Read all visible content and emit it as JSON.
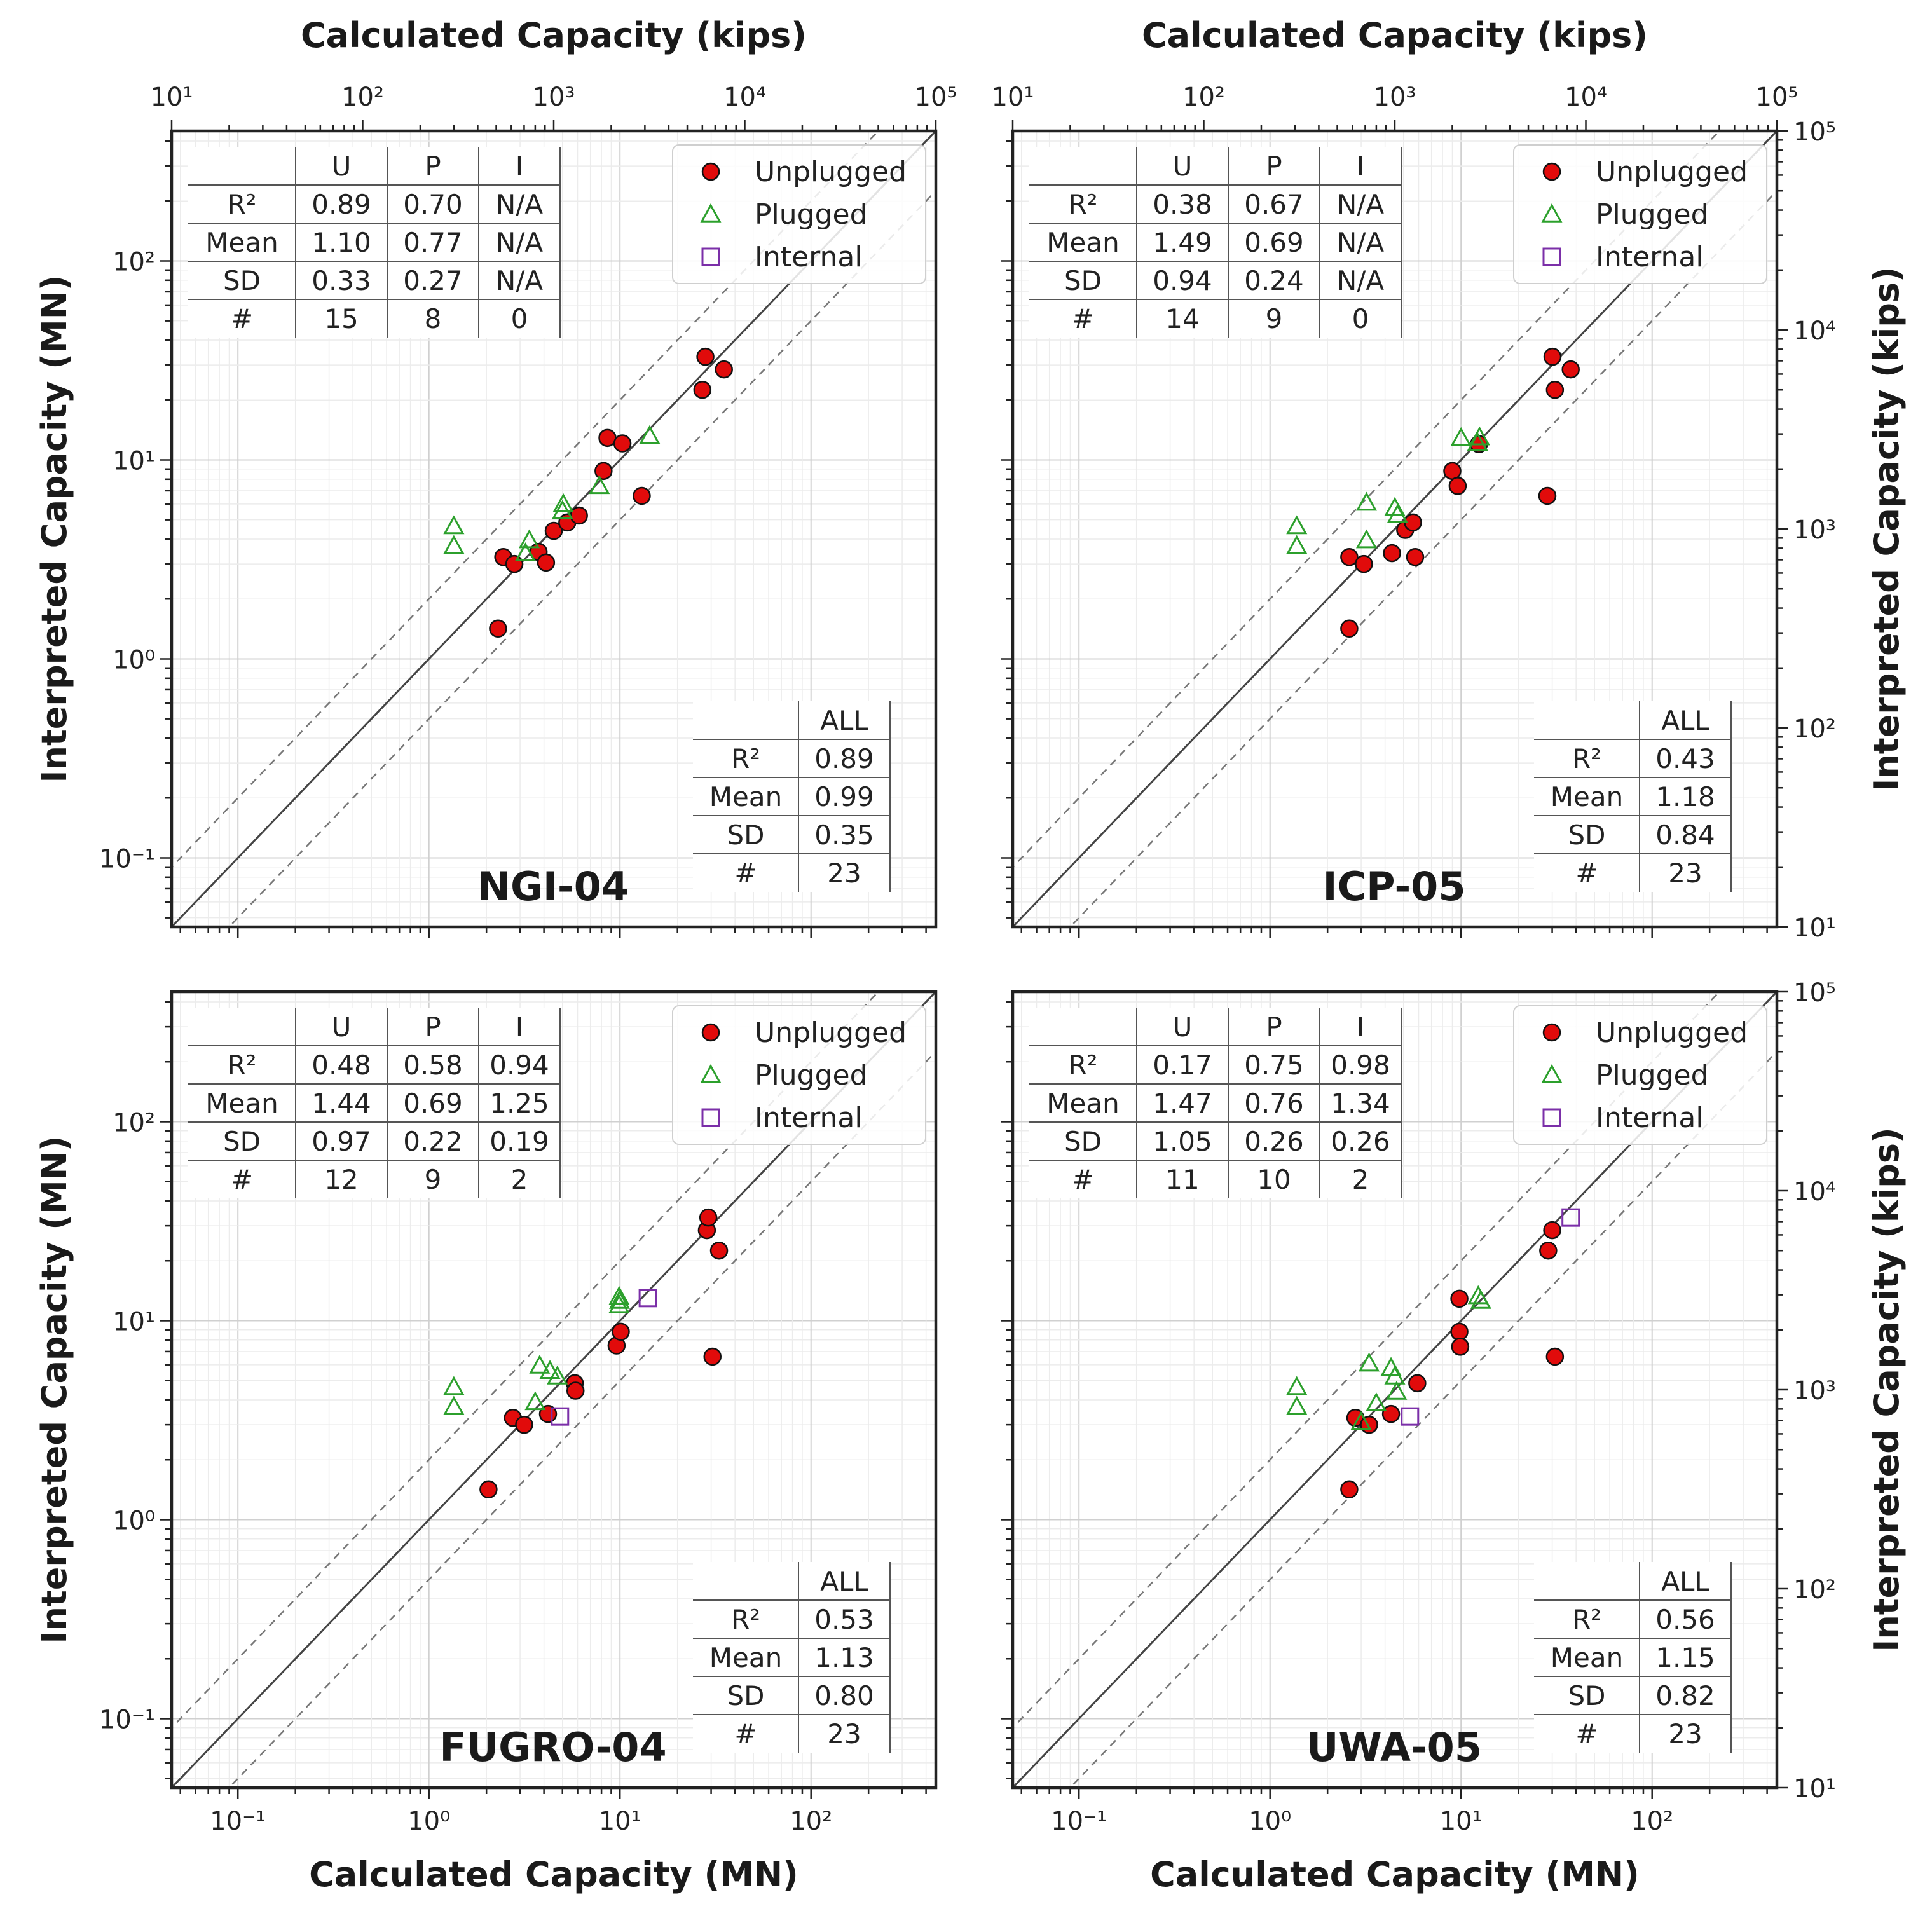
{
  "chart_data": {
    "type": "scatter",
    "x_scale": "log",
    "y_scale": "log",
    "xlim_MN": [
      0.045,
      450
    ],
    "ylim_MN": [
      0.045,
      450
    ],
    "kips_range": [
      10,
      100000
    ],
    "mn_tick_labels": [
      "10⁻¹",
      "10⁰",
      "10¹",
      "10²"
    ],
    "kips_tick_labels": [
      "10¹",
      "10²",
      "10³",
      "10⁴",
      "10⁵"
    ],
    "x_label_top": "Calculated Capacity (kips)",
    "x_label_bottom": "Calculated Capacity (MN)",
    "y_label_left": "Interpreted Capacity (MN)",
    "y_label_right": "Interpreted Capacity (kips)",
    "reference_lines": {
      "one_to_one": 1,
      "bounds": [
        2,
        0.5
      ]
    },
    "legend": [
      {
        "key": "U",
        "label": "Unplugged",
        "marker": "circle",
        "color": "#e00000"
      },
      {
        "key": "P",
        "label": "Plugged",
        "marker": "triangle",
        "color": "#2ca02c"
      },
      {
        "key": "I",
        "label": "Internal",
        "marker": "square",
        "color": "#7b2fa8"
      }
    ],
    "stats_columns": [
      "U",
      "P",
      "I"
    ],
    "stats_all_header": "ALL",
    "stats_row_labels": [
      "R²",
      "Mean",
      "SD",
      "#"
    ],
    "panels": [
      {
        "name": "NGI-04",
        "stats": [
          [
            "0.89",
            "0.70",
            "N/A"
          ],
          [
            "1.10",
            "0.77",
            "N/A"
          ],
          [
            "0.33",
            "0.27",
            "N/A"
          ],
          [
            "15",
            "8",
            "0"
          ]
        ],
        "all": [
          "0.89",
          "0.99",
          "0.35",
          "23"
        ],
        "series": [
          {
            "key": "U",
            "points": [
              [
                2.3,
                1.42
              ],
              [
                2.45,
                3.25
              ],
              [
                2.8,
                3.0
              ],
              [
                3.75,
                3.45
              ],
              [
                4.1,
                3.05
              ],
              [
                4.5,
                4.4
              ],
              [
                5.3,
                4.85
              ],
              [
                6.1,
                5.25
              ],
              [
                8.2,
                8.8
              ],
              [
                8.6,
                12.9
              ],
              [
                10.3,
                12.1
              ],
              [
                13.0,
                6.6
              ],
              [
                27,
                22.5
              ],
              [
                28,
                33.0
              ],
              [
                35,
                28.5
              ]
            ]
          },
          {
            "key": "P",
            "points": [
              [
                1.35,
                4.65
              ],
              [
                1.35,
                3.7
              ],
              [
                3.2,
                3.4
              ],
              [
                3.35,
                3.95
              ],
              [
                5.0,
                5.55
              ],
              [
                5.05,
                6.0
              ],
              [
                7.8,
                7.4
              ],
              [
                14.3,
                13.2
              ]
            ]
          },
          {
            "key": "I",
            "points": []
          }
        ]
      },
      {
        "name": "ICP-05",
        "stats": [
          [
            "0.38",
            "0.67",
            "N/A"
          ],
          [
            "1.49",
            "0.69",
            "N/A"
          ],
          [
            "0.94",
            "0.24",
            "N/A"
          ],
          [
            "14",
            "9",
            "0"
          ]
        ],
        "all": [
          "0.43",
          "1.18",
          "0.84",
          "23"
        ],
        "series": [
          {
            "key": "U",
            "points": [
              [
                2.6,
                3.25
              ],
              [
                2.6,
                1.42
              ],
              [
                3.1,
                3.0
              ],
              [
                4.35,
                3.4
              ],
              [
                5.1,
                4.45
              ],
              [
                5.6,
                4.85
              ],
              [
                5.75,
                3.25
              ],
              [
                9.0,
                8.8
              ],
              [
                9.6,
                7.4
              ],
              [
                12.4,
                12.0
              ],
              [
                28.3,
                6.6
              ],
              [
                30.1,
                33.0
              ],
              [
                31.0,
                22.5
              ],
              [
                37.5,
                28.5
              ]
            ]
          },
          {
            "key": "P",
            "points": [
              [
                1.38,
                4.65
              ],
              [
                1.38,
                3.7
              ],
              [
                3.2,
                6.1
              ],
              [
                3.2,
                3.95
              ],
              [
                4.5,
                5.75
              ],
              [
                4.65,
                5.3
              ],
              [
                10.0,
                12.9
              ],
              [
                12.2,
                12.2
              ],
              [
                12.5,
                13.0
              ]
            ]
          },
          {
            "key": "I",
            "points": []
          }
        ]
      },
      {
        "name": "FUGRO-04",
        "stats": [
          [
            "0.48",
            "0.58",
            "0.94"
          ],
          [
            "1.44",
            "0.69",
            "1.25"
          ],
          [
            "0.97",
            "0.22",
            "0.19"
          ],
          [
            "12",
            "9",
            "2"
          ]
        ],
        "all": [
          "0.53",
          "1.13",
          "0.80",
          "23"
        ],
        "series": [
          {
            "key": "U",
            "points": [
              [
                2.05,
                1.42
              ],
              [
                2.75,
                3.25
              ],
              [
                3.15,
                3.0
              ],
              [
                4.2,
                3.4
              ],
              [
                5.8,
                4.85
              ],
              [
                5.85,
                4.45
              ],
              [
                9.6,
                7.5
              ],
              [
                10.1,
                8.8
              ],
              [
                28.5,
                28.5
              ],
              [
                29.0,
                33.0
              ],
              [
                30.5,
                6.6
              ],
              [
                33.0,
                22.5
              ]
            ]
          },
          {
            "key": "P",
            "points": [
              [
                1.35,
                4.65
              ],
              [
                1.35,
                3.7
              ],
              [
                3.6,
                3.9
              ],
              [
                3.8,
                5.95
              ],
              [
                4.3,
                5.6
              ],
              [
                4.7,
                5.25
              ],
              [
                9.9,
                12.0
              ],
              [
                9.9,
                13.2
              ],
              [
                9.95,
                12.6
              ]
            ]
          },
          {
            "key": "I",
            "points": [
              [
                4.85,
                3.3
              ],
              [
                14.0,
                13.0
              ]
            ]
          }
        ]
      },
      {
        "name": "UWA-05",
        "stats": [
          [
            "0.17",
            "0.75",
            "0.98"
          ],
          [
            "1.47",
            "0.76",
            "1.34"
          ],
          [
            "1.05",
            "0.26",
            "0.26"
          ],
          [
            "11",
            "10",
            "2"
          ]
        ],
        "all": [
          "0.56",
          "1.15",
          "0.82",
          "23"
        ],
        "series": [
          {
            "key": "U",
            "points": [
              [
                2.6,
                1.42
              ],
              [
                2.8,
                3.25
              ],
              [
                3.3,
                3.0
              ],
              [
                4.3,
                3.4
              ],
              [
                5.9,
                4.85
              ],
              [
                9.8,
                12.9
              ],
              [
                9.8,
                8.8
              ],
              [
                9.9,
                7.4
              ],
              [
                28.6,
                22.5
              ],
              [
                30.0,
                28.5
              ],
              [
                31.0,
                6.6
              ]
            ]
          },
          {
            "key": "P",
            "points": [
              [
                1.38,
                4.65
              ],
              [
                1.38,
                3.7
              ],
              [
                3.3,
                6.1
              ],
              [
                3.6,
                3.85
              ],
              [
                4.3,
                5.8
              ],
              [
                4.5,
                5.25
              ],
              [
                4.6,
                4.4
              ],
              [
                12.3,
                13.3
              ],
              [
                12.7,
                12.6
              ],
              [
                3.0,
                3.1
              ]
            ]
          },
          {
            "key": "I",
            "points": [
              [
                5.4,
                3.3
              ],
              [
                37.5,
                33.0
              ]
            ]
          }
        ]
      }
    ]
  }
}
